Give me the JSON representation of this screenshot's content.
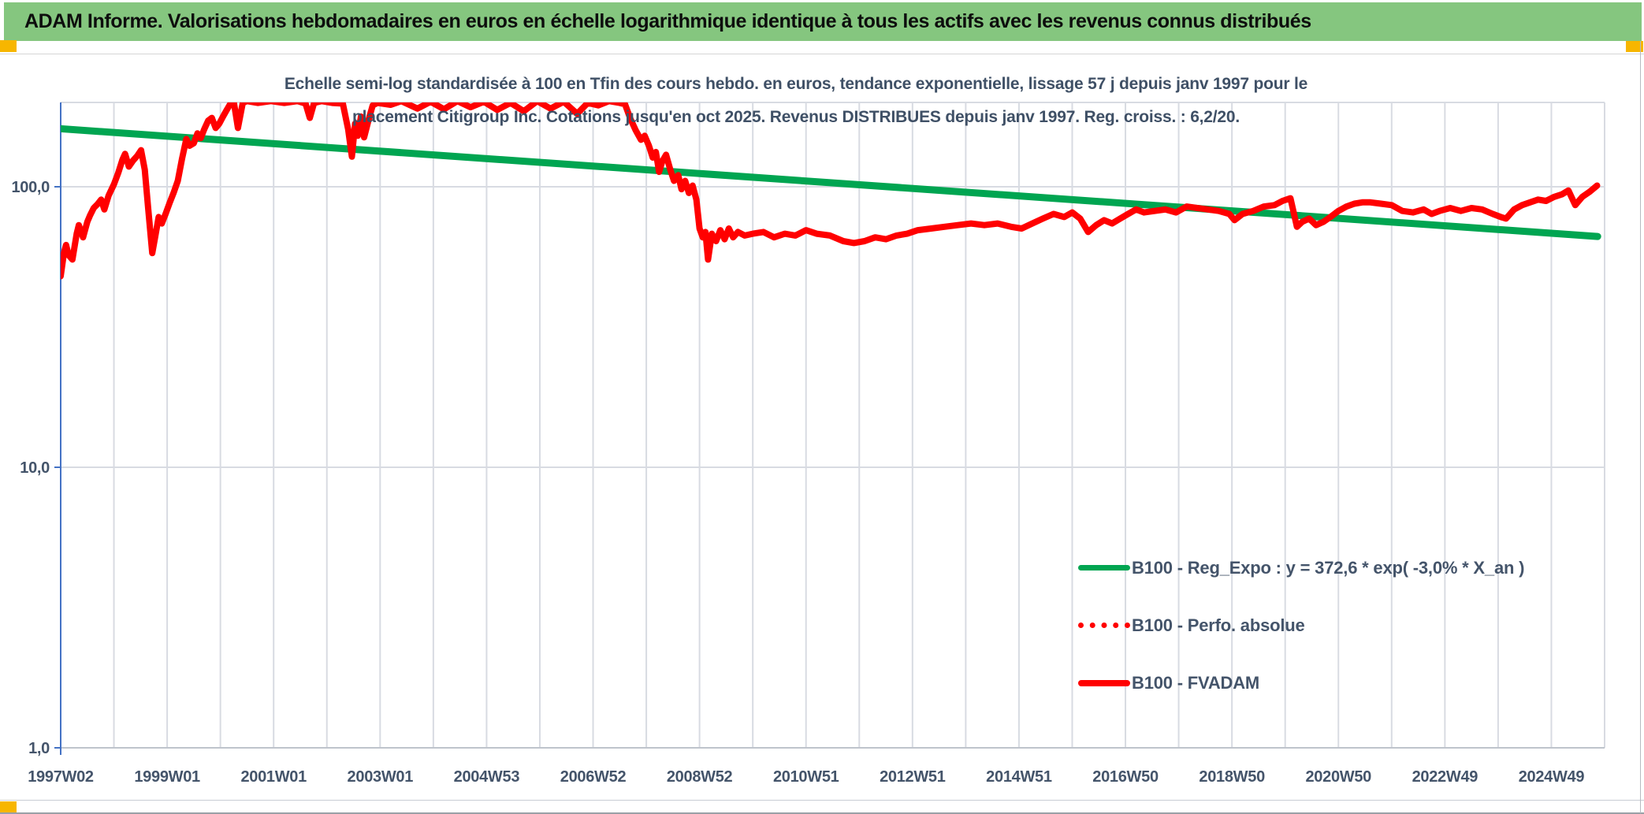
{
  "header": {
    "title": "ADAM Informe. Valorisations hebdomadaires en euros en échelle logarithmique identique à tous les actifs avec les revenus connus distribués"
  },
  "chart": {
    "title_line1": "Echelle semi-log standardisée à 100 en Tfin des cours hebdo. en euros, tendance exponentielle, lissage 57 j depuis janv 1997 pour le",
    "title_line2": "placement Citigroup Inc. Cotations jusqu'en oct 2025. Revenus DISTRIBUES depuis janv 1997. Reg. croiss. : 6,2/20.",
    "legend": [
      {
        "label": "B100 - Reg_Expo : y = 372,6 * exp( -3,0% *  X_an )",
        "color": "#00A551",
        "style": "solid"
      },
      {
        "label": "B100 - Perfo. absolue",
        "color": "#FF0000",
        "style": "dotted"
      },
      {
        "label": "B100 - FVADAM",
        "color": "#FF0000",
        "style": "solid"
      }
    ]
  },
  "colors": {
    "header_bg": "#85C67F",
    "corner_marker": "#F7B600",
    "reg_expo_line": "#00A551",
    "price_line": "#FF0000",
    "axis_text": "#44546A",
    "gridline": "#D8DBE2",
    "y_axis_line": "#4472C4"
  },
  "chart_data": {
    "type": "line",
    "y_scale": "log",
    "ylim": [
      1,
      200
    ],
    "x_range_years": [
      1997,
      2026
    ],
    "grid": true,
    "legend_position": "inside-right-bottom",
    "y_ticks": [
      {
        "label": "100,0",
        "value": 100
      },
      {
        "label": "10,0",
        "value": 10
      },
      {
        "label": "1,0",
        "value": 1
      }
    ],
    "x_ticks": [
      {
        "label": "1997W02",
        "year": 1997
      },
      {
        "label": "1999W01",
        "year": 1999
      },
      {
        "label": "2001W01",
        "year": 2001
      },
      {
        "label": "2003W01",
        "year": 2003
      },
      {
        "label": "2004W53",
        "year": 2005
      },
      {
        "label": "2006W52",
        "year": 2007
      },
      {
        "label": "2008W52",
        "year": 2009
      },
      {
        "label": "2010W51",
        "year": 2011
      },
      {
        "label": "2012W51",
        "year": 2013
      },
      {
        "label": "2014W51",
        "year": 2015
      },
      {
        "label": "2016W50",
        "year": 2017
      },
      {
        "label": "2018W50",
        "year": 2019
      },
      {
        "label": "2020W50",
        "year": 2021
      },
      {
        "label": "2022W49",
        "year": 2023
      },
      {
        "label": "2024W49",
        "year": 2025
      }
    ],
    "series": [
      {
        "name": "B100 - Reg_Expo : y = 372,6 * exp( -3,0% *  X_an )",
        "color": "#00A551",
        "style": "solid",
        "width": 9,
        "points": [
          [
            1997.0,
            161
          ],
          [
            2025.87,
            66.5
          ]
        ]
      },
      {
        "name": "B100 - Perfo. absolue",
        "color": "#FF0000",
        "style": "dotted",
        "width": 6,
        "same_points_as": 2
      },
      {
        "name": "B100 - FVADAM",
        "color": "#FF0000",
        "style": "solid",
        "width": 8,
        "points": [
          [
            1997.0,
            48
          ],
          [
            1997.06,
            58
          ],
          [
            1997.1,
            62
          ],
          [
            1997.15,
            57
          ],
          [
            1997.22,
            55
          ],
          [
            1997.3,
            68
          ],
          [
            1997.34,
            73
          ],
          [
            1997.42,
            66
          ],
          [
            1997.5,
            75
          ],
          [
            1997.55,
            79
          ],
          [
            1997.62,
            84
          ],
          [
            1997.7,
            87
          ],
          [
            1997.76,
            90
          ],
          [
            1997.82,
            83
          ],
          [
            1997.9,
            93
          ],
          [
            1998.0,
            102
          ],
          [
            1998.08,
            112
          ],
          [
            1998.16,
            125
          ],
          [
            1998.21,
            131
          ],
          [
            1998.28,
            118
          ],
          [
            1998.36,
            124
          ],
          [
            1998.44,
            129
          ],
          [
            1998.51,
            135
          ],
          [
            1998.58,
            115
          ],
          [
            1998.64,
            85
          ],
          [
            1998.72,
            58
          ],
          [
            1998.78,
            67
          ],
          [
            1998.84,
            78
          ],
          [
            1998.9,
            74
          ],
          [
            1998.97,
            80
          ],
          [
            1999.05,
            88
          ],
          [
            1999.12,
            95
          ],
          [
            1999.2,
            105
          ],
          [
            1999.28,
            126
          ],
          [
            1999.36,
            148
          ],
          [
            1999.42,
            140
          ],
          [
            1999.5,
            143
          ],
          [
            1999.57,
            155
          ],
          [
            1999.63,
            149
          ],
          [
            1999.7,
            161
          ],
          [
            1999.77,
            172
          ],
          [
            1999.84,
            176
          ],
          [
            1999.91,
            162
          ],
          [
            1999.98,
            168
          ],
          [
            2000.05,
            178
          ],
          [
            2000.12,
            188
          ],
          [
            2000.19,
            198
          ],
          [
            2000.25,
            202
          ],
          [
            2000.33,
            162
          ],
          [
            2000.42,
            199
          ],
          [
            2000.5,
            202
          ],
          [
            2000.7,
            199
          ],
          [
            2000.95,
            202
          ],
          [
            2001.2,
            199
          ],
          [
            2001.45,
            202
          ],
          [
            2001.6,
            198
          ],
          [
            2001.68,
            176
          ],
          [
            2001.76,
            199
          ],
          [
            2001.9,
            202
          ],
          [
            2002.1,
            199
          ],
          [
            2002.3,
            198
          ],
          [
            2002.4,
            160
          ],
          [
            2002.47,
            128
          ],
          [
            2002.53,
            168
          ],
          [
            2002.58,
            152
          ],
          [
            2002.64,
            178
          ],
          [
            2002.7,
            150
          ],
          [
            2002.78,
            172
          ],
          [
            2002.86,
            195
          ],
          [
            2002.95,
            199
          ],
          [
            2003.2,
            196
          ],
          [
            2003.4,
            202
          ],
          [
            2003.7,
            190
          ],
          [
            2003.95,
            201
          ],
          [
            2004.2,
            189
          ],
          [
            2004.45,
            202
          ],
          [
            2004.7,
            192
          ],
          [
            2004.95,
            201
          ],
          [
            2005.2,
            188
          ],
          [
            2005.45,
            199
          ],
          [
            2005.7,
            186
          ],
          [
            2005.95,
            202
          ],
          [
            2006.2,
            190
          ],
          [
            2006.45,
            201
          ],
          [
            2006.7,
            182
          ],
          [
            2006.9,
            199
          ],
          [
            2007.1,
            195
          ],
          [
            2007.3,
            202
          ],
          [
            2007.5,
            199
          ],
          [
            2007.6,
            197
          ],
          [
            2007.7,
            175
          ],
          [
            2007.8,
            159
          ],
          [
            2007.9,
            147
          ],
          [
            2007.97,
            152
          ],
          [
            2008.05,
            140
          ],
          [
            2008.12,
            127
          ],
          [
            2008.18,
            133
          ],
          [
            2008.24,
            113
          ],
          [
            2008.3,
            123
          ],
          [
            2008.37,
            130
          ],
          [
            2008.45,
            115
          ],
          [
            2008.52,
            105
          ],
          [
            2008.6,
            110
          ],
          [
            2008.66,
            98
          ],
          [
            2008.73,
            105
          ],
          [
            2008.8,
            95
          ],
          [
            2008.87,
            101
          ],
          [
            2008.94,
            90
          ],
          [
            2009.0,
            71
          ],
          [
            2009.06,
            66
          ],
          [
            2009.11,
            69
          ],
          [
            2009.16,
            55
          ],
          [
            2009.23,
            68
          ],
          [
            2009.31,
            64
          ],
          [
            2009.39,
            70
          ],
          [
            2009.47,
            65
          ],
          [
            2009.55,
            71
          ],
          [
            2009.63,
            66
          ],
          [
            2009.72,
            69
          ],
          [
            2009.85,
            67
          ],
          [
            2010.0,
            68
          ],
          [
            2010.2,
            69
          ],
          [
            2010.4,
            66
          ],
          [
            2010.6,
            68
          ],
          [
            2010.8,
            67
          ],
          [
            2011.0,
            70
          ],
          [
            2011.2,
            68
          ],
          [
            2011.45,
            67
          ],
          [
            2011.7,
            64
          ],
          [
            2011.9,
            63
          ],
          [
            2012.1,
            64
          ],
          [
            2012.3,
            66
          ],
          [
            2012.5,
            65
          ],
          [
            2012.7,
            67
          ],
          [
            2012.9,
            68
          ],
          [
            2013.1,
            70
          ],
          [
            2013.35,
            71
          ],
          [
            2013.6,
            72
          ],
          [
            2013.85,
            73
          ],
          [
            2014.1,
            74
          ],
          [
            2014.35,
            73
          ],
          [
            2014.6,
            74
          ],
          [
            2014.85,
            72
          ],
          [
            2015.05,
            71
          ],
          [
            2015.25,
            74
          ],
          [
            2015.45,
            77
          ],
          [
            2015.65,
            80
          ],
          [
            2015.85,
            78
          ],
          [
            2016.0,
            81
          ],
          [
            2016.15,
            77
          ],
          [
            2016.3,
            69
          ],
          [
            2016.45,
            73
          ],
          [
            2016.6,
            76
          ],
          [
            2016.75,
            74
          ],
          [
            2016.9,
            77
          ],
          [
            2017.05,
            80
          ],
          [
            2017.2,
            83
          ],
          [
            2017.35,
            81
          ],
          [
            2017.55,
            82
          ],
          [
            2017.75,
            83
          ],
          [
            2017.95,
            81
          ],
          [
            2018.15,
            85
          ],
          [
            2018.35,
            84
          ],
          [
            2018.55,
            83
          ],
          [
            2018.75,
            82
          ],
          [
            2018.95,
            80
          ],
          [
            2019.05,
            76
          ],
          [
            2019.2,
            80
          ],
          [
            2019.4,
            82
          ],
          [
            2019.6,
            85
          ],
          [
            2019.8,
            86
          ],
          [
            2019.95,
            89
          ],
          [
            2020.1,
            91
          ],
          [
            2020.22,
            72
          ],
          [
            2020.32,
            75
          ],
          [
            2020.45,
            77
          ],
          [
            2020.58,
            73
          ],
          [
            2020.72,
            75
          ],
          [
            2020.85,
            78
          ],
          [
            2021.0,
            82
          ],
          [
            2021.15,
            85
          ],
          [
            2021.3,
            87
          ],
          [
            2021.45,
            88
          ],
          [
            2021.6,
            88
          ],
          [
            2021.8,
            87
          ],
          [
            2022.0,
            86
          ],
          [
            2022.2,
            82
          ],
          [
            2022.4,
            81
          ],
          [
            2022.6,
            83
          ],
          [
            2022.75,
            80
          ],
          [
            2022.9,
            82
          ],
          [
            2023.1,
            84
          ],
          [
            2023.3,
            82
          ],
          [
            2023.5,
            84
          ],
          [
            2023.7,
            83
          ],
          [
            2023.9,
            80
          ],
          [
            2024.05,
            78
          ],
          [
            2024.15,
            77
          ],
          [
            2024.3,
            83
          ],
          [
            2024.45,
            86
          ],
          [
            2024.6,
            88
          ],
          [
            2024.75,
            90
          ],
          [
            2024.9,
            89
          ],
          [
            2025.05,
            92
          ],
          [
            2025.2,
            94
          ],
          [
            2025.32,
            97
          ],
          [
            2025.45,
            86
          ],
          [
            2025.58,
            92
          ],
          [
            2025.72,
            96
          ],
          [
            2025.86,
            101
          ]
        ]
      }
    ]
  }
}
